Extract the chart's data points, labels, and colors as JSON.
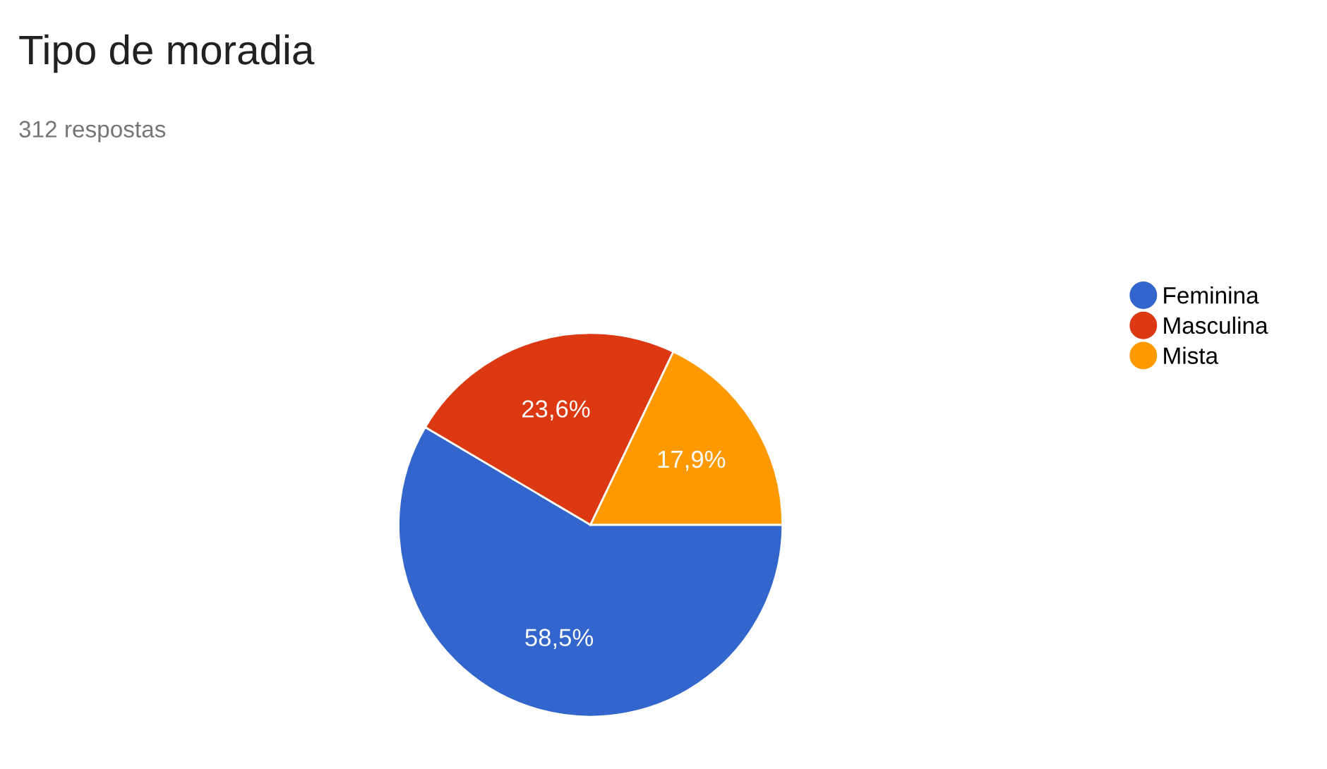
{
  "chart_data": {
    "type": "pie",
    "title": "Tipo de moradia",
    "subtitle": "312 respostas",
    "categories": [
      "Feminina",
      "Masculina",
      "Mista"
    ],
    "values": [
      58.5,
      23.6,
      17.9
    ],
    "colors": [
      "#3366cc",
      "#dc3912",
      "#ff9900"
    ],
    "value_labels": [
      "58,5%",
      "23,6%",
      "17,9%"
    ],
    "legend": "right"
  }
}
